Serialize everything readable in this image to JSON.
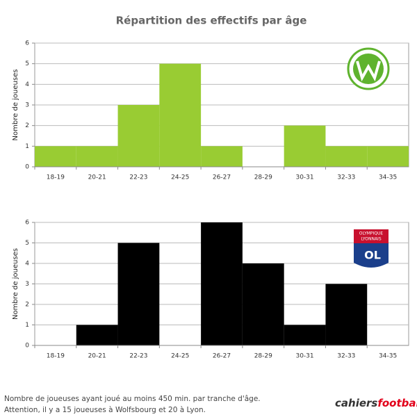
{
  "title": "Répartition des effectifs par âge",
  "chart_data": [
    {
      "type": "bar",
      "ylabel": "Nombre de joueuses",
      "categories": [
        "18-19",
        "20-21",
        "22-23",
        "24-25",
        "26-27",
        "28-29",
        "30-31",
        "32-33",
        "34-35"
      ],
      "values": [
        1,
        1,
        3,
        5,
        1,
        0,
        2,
        1,
        1
      ],
      "color": "#99cc33",
      "ylim": [
        0,
        6
      ],
      "yticks": [
        0,
        1,
        2,
        3,
        4,
        5,
        6
      ],
      "grid": true
    },
    {
      "type": "bar",
      "ylabel": "Nombre de joueuses",
      "categories": [
        "18-19",
        "20-21",
        "22-23",
        "24-25",
        "26-27",
        "28-29",
        "30-31",
        "32-33",
        "34-35"
      ],
      "values": [
        0,
        1,
        5,
        0,
        6,
        4,
        1,
        3,
        0
      ],
      "color": "#000000",
      "ylim": [
        0,
        6
      ],
      "yticks": [
        0,
        1,
        2,
        3,
        4,
        5,
        6
      ],
      "grid": true
    }
  ],
  "ol_logo": {
    "line1": "OLYMPIQUE",
    "line2": "LYONNAIS",
    "mark": "OL"
  },
  "footer": {
    "lines": [
      "Nombre de joueuses ayant joué au moins 450 min. par tranche d'âge.",
      "Attention, il y a 15 joueuses à Wolfsbourg et 20 à Lyon."
    ],
    "brand": [
      "cahiers",
      "football"
    ]
  }
}
